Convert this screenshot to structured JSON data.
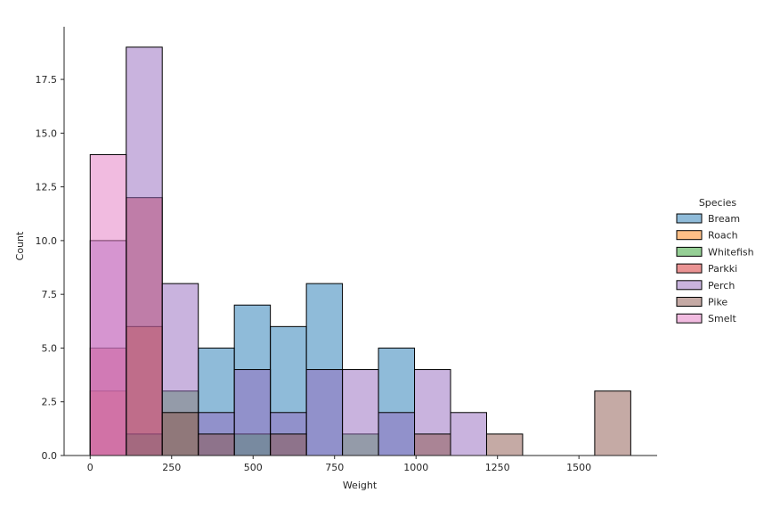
{
  "chart_data": {
    "type": "bar",
    "subtype": "histogram",
    "stacking": "overlaid",
    "xlabel": "Weight",
    "ylabel": "Count",
    "xlim": [
      -80,
      1740
    ],
    "ylim": [
      0,
      19.95
    ],
    "bin_edges": [
      0,
      110.6,
      221.2,
      331.8,
      442.4,
      553.0,
      663.6,
      774.2,
      884.8,
      995.4,
      1106.0,
      1216.6,
      1327.2,
      1437.8,
      1548.4,
      1659.0
    ],
    "x_ticks": [
      0,
      250,
      500,
      750,
      1000,
      1250,
      1500
    ],
    "y_ticks": [
      0.0,
      2.5,
      5.0,
      7.5,
      10.0,
      12.5,
      15.0,
      17.5
    ],
    "grid": false,
    "legend_title": "Species",
    "legend_position": "right",
    "series": [
      {
        "name": "Bream",
        "color": "#1f77b4",
        "counts": [
          0,
          0,
          0,
          5,
          7,
          6,
          8,
          0,
          5,
          0,
          0,
          0,
          0,
          0,
          0
        ]
      },
      {
        "name": "Roach",
        "color": "#ff7f0e",
        "counts": [
          3,
          6,
          0,
          0,
          0,
          0,
          0,
          0,
          0,
          0,
          0,
          0,
          0,
          0,
          0
        ]
      },
      {
        "name": "Whitefish",
        "color": "#2ca02c",
        "counts": [
          0,
          1,
          3,
          0,
          1,
          0,
          0,
          1,
          0,
          0,
          0,
          0,
          0,
          0,
          0
        ]
      },
      {
        "name": "Parkki",
        "color": "#d62728",
        "counts": [
          5,
          12,
          0,
          0,
          0,
          0,
          0,
          0,
          0,
          0,
          0,
          0,
          0,
          0,
          0
        ]
      },
      {
        "name": "Perch",
        "color": "#9467bd",
        "counts": [
          10,
          19,
          8,
          2,
          4,
          2,
          4,
          4,
          2,
          4,
          2,
          0,
          0,
          0,
          0
        ]
      },
      {
        "name": "Pike",
        "color": "#8c564b",
        "counts": [
          0,
          0,
          2,
          1,
          0,
          1,
          0,
          0,
          0,
          1,
          0,
          1,
          0,
          0,
          3
        ]
      },
      {
        "name": "Smelt",
        "color": "#e377c2",
        "counts": [
          14,
          0,
          0,
          0,
          0,
          0,
          0,
          0,
          0,
          0,
          0,
          0,
          0,
          0,
          0
        ]
      }
    ]
  }
}
